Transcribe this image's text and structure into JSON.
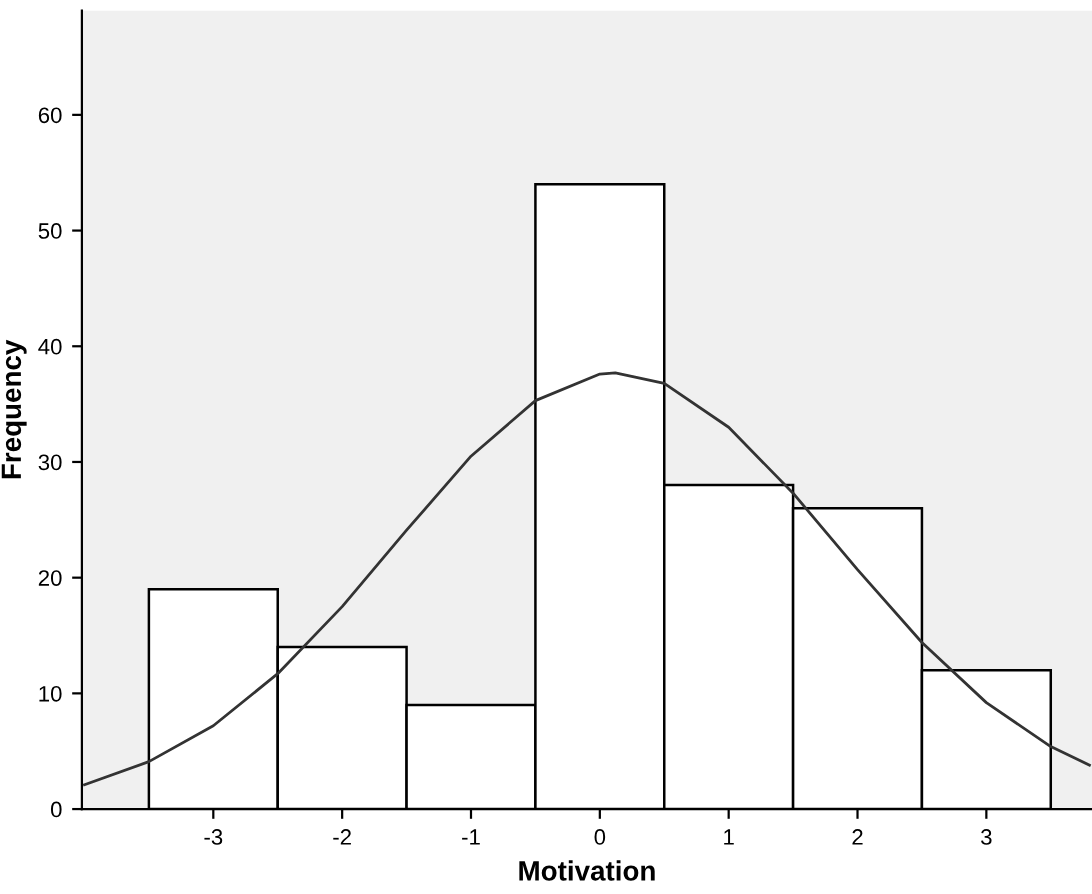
{
  "chart_data": {
    "type": "histogram",
    "xlabel": "Motivation",
    "ylabel": "Frequency",
    "xlim": [
      -4.02,
      3.82
    ],
    "ylim": [
      0,
      69
    ],
    "xticks": [
      -3,
      -2,
      -1,
      0,
      1,
      2,
      3
    ],
    "yticks": [
      0,
      10,
      20,
      30,
      40,
      50,
      60
    ],
    "grid": false,
    "legend": false,
    "series": [
      {
        "color": "#ffffff",
        "bins": [
          -3.5,
          -2.5,
          -1.5,
          -0.5,
          0.5,
          1.5,
          2.5,
          3.5
        ],
        "values": [
          19,
          14,
          9,
          54,
          28,
          26,
          12
        ]
      },
      {
        "type": "line",
        "color": "#333333",
        "marker": "none",
        "line_style": "solid",
        "x": [
          -4,
          -3.5,
          -3,
          -2.5,
          -2,
          -1.5,
          -1,
          -0.5,
          0,
          0.12,
          0.5,
          1,
          1.5,
          2,
          2.5,
          3,
          3.5,
          3.8
        ],
        "values": [
          2.1,
          4.1,
          7.2,
          11.7,
          17.5,
          24.1,
          30.5,
          35.3,
          37.6,
          37.7,
          36.8,
          33.0,
          27.3,
          20.7,
          14.4,
          9.2,
          5.4,
          3.8
        ]
      }
    ]
  }
}
